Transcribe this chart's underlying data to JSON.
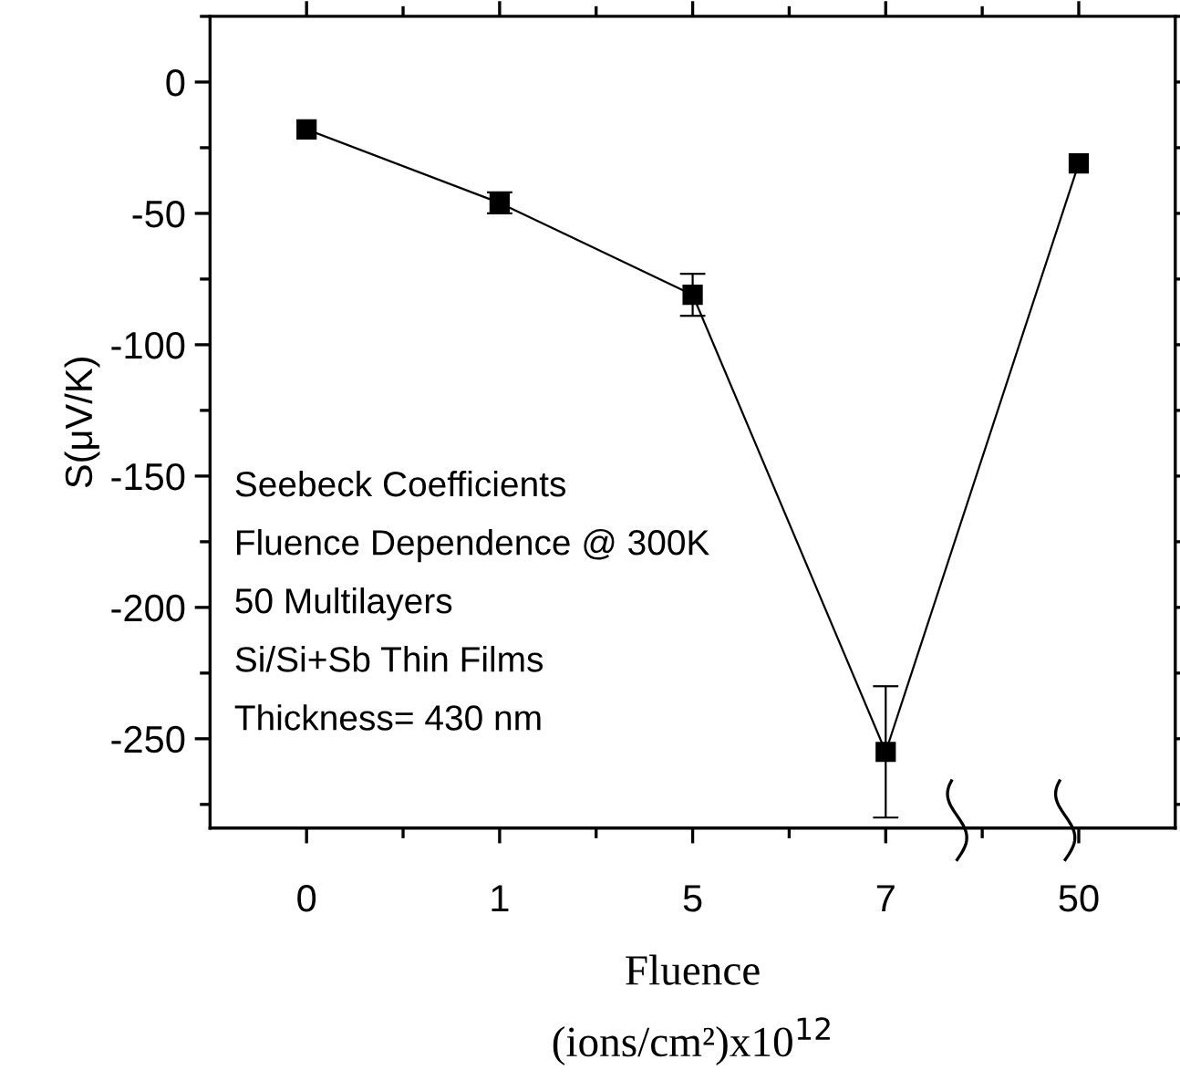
{
  "chart_data": {
    "type": "line",
    "xlabel": "Fluence\n(ions/cm²)x10$^{12}$",
    "ylabel": "S(μV/K)",
    "categories": [
      "0",
      "1",
      "5",
      "7",
      "50"
    ],
    "series": [
      {
        "color": "#000000",
        "values": [
          -18,
          -46,
          -81,
          -255,
          -31
        ],
        "errors": [
          null,
          4,
          8,
          25,
          null
        ]
      }
    ],
    "ylim": [
      -284,
      25
    ],
    "yticks": [
      0,
      -50,
      -100,
      -150,
      -200,
      -250
    ],
    "marker": "square",
    "line_style": "solid",
    "grid": false,
    "legend": false,
    "annotations": [
      "Seebeck Coefficients",
      "Fluence Dependence @ 300K",
      "50 Multilayers",
      "Si/Si+Sb Thin Films",
      "Thickness= 430 nm"
    ]
  }
}
